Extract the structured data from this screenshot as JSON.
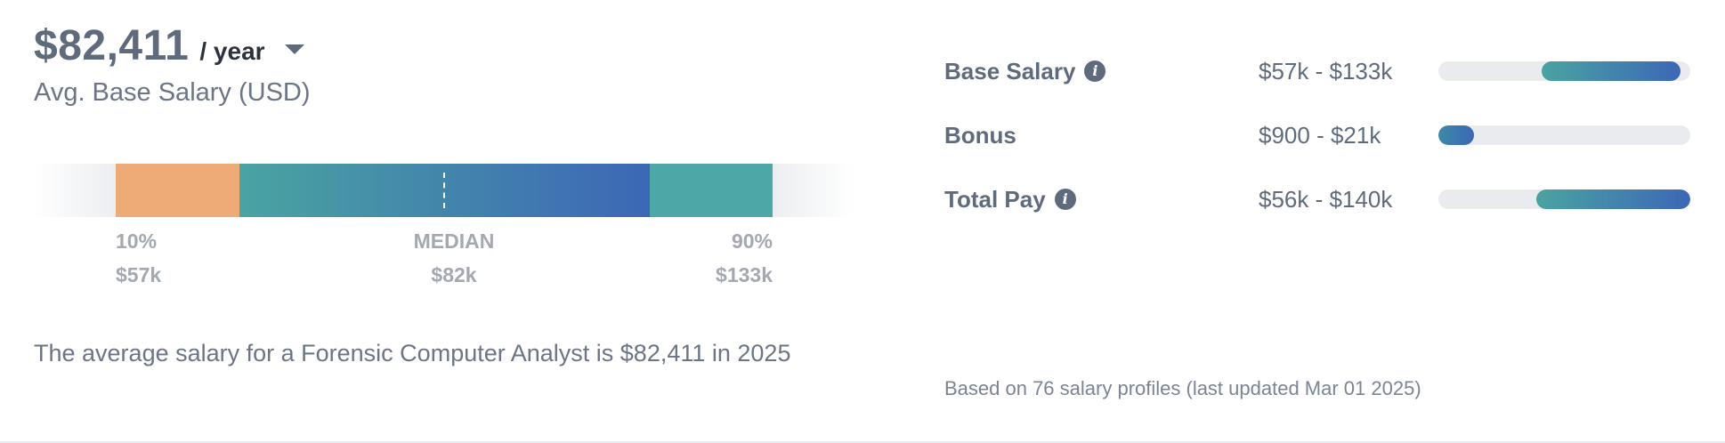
{
  "summary": {
    "amount": "$82,411",
    "period": "/ year",
    "subtitle": "Avg. Base Salary (USD)",
    "description": "The average salary for a Forensic Computer Analyst is $82,411 in 2025"
  },
  "distribution": {
    "p10_label": "10%",
    "p10_value": "$57k",
    "median_label": "MEDIAN",
    "median_value": "$82k",
    "p90_label": "90%",
    "p90_value": "$133k",
    "colors": {
      "low": "#eeab77",
      "mid_start": "#4aa3a2",
      "mid_end": "#3c67b6",
      "high": "#4ca7a6"
    }
  },
  "compensation": {
    "rows": [
      {
        "label": "Base Salary",
        "has_info": true,
        "range": "$57k - $133k",
        "fill_start": 0.41,
        "fill_end": 0.96
      },
      {
        "label": "Bonus",
        "has_info": false,
        "range": "$900 - $21k",
        "fill_start": 0.0,
        "fill_end": 0.14
      },
      {
        "label": "Total Pay",
        "has_info": true,
        "range": "$56k - $140k",
        "fill_start": 0.39,
        "fill_end": 1.0
      }
    ],
    "footnote": "Based on 76 salary profiles (last updated Mar 01 2025)"
  },
  "icons": {
    "info": "info-icon",
    "dropdown": "caret-down-icon"
  }
}
